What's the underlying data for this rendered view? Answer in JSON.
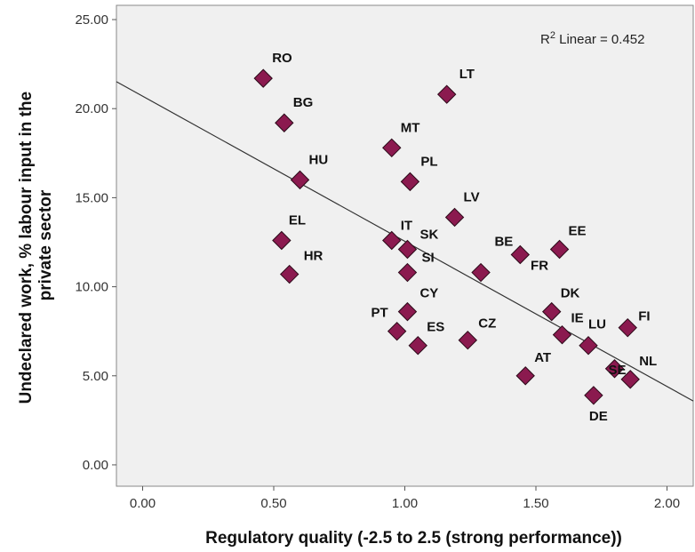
{
  "chart_data": {
    "type": "scatter",
    "xlabel": "Regulatory quality (-2.5 to 2.5 (strong performance))",
    "ylabel_line1": "Undeclared work, % labour input in the",
    "ylabel_line2": "private sector",
    "xlim": [
      -0.1,
      2.1
    ],
    "ylim": [
      -1.2,
      25.8
    ],
    "x_ticks": [
      0.0,
      0.5,
      1.0,
      1.5,
      2.0
    ],
    "x_tick_labels": [
      "0.00",
      "0.50",
      "1.00",
      "1.50",
      "2.00"
    ],
    "y_ticks": [
      0.0,
      5.0,
      10.0,
      15.0,
      20.0,
      25.0
    ],
    "y_tick_labels": [
      "0.00",
      "5.00",
      "10.00",
      "15.00",
      "20.00",
      "25.00"
    ],
    "grid": false,
    "fit_line": {
      "intercept": 20.7,
      "slope": -8.15
    },
    "r2_annotation": {
      "prefix": "R",
      "sup": "2",
      "text": " Linear = 0.452",
      "position": "top-right"
    },
    "points": [
      {
        "label": "RO",
        "x": 0.46,
        "y": 21.7
      },
      {
        "label": "BG",
        "x": 0.54,
        "y": 19.2
      },
      {
        "label": "HU",
        "x": 0.6,
        "y": 16.0
      },
      {
        "label": "EL",
        "x": 0.53,
        "y": 12.6
      },
      {
        "label": "HR",
        "x": 0.56,
        "y": 10.7
      },
      {
        "label": "MT",
        "x": 0.95,
        "y": 17.8
      },
      {
        "label": "PL",
        "x": 1.02,
        "y": 15.9
      },
      {
        "label": "LT",
        "x": 1.16,
        "y": 20.8
      },
      {
        "label": "LV",
        "x": 1.19,
        "y": 13.9
      },
      {
        "label": "IT",
        "x": 0.95,
        "y": 12.6
      },
      {
        "label": "SK",
        "x": 1.01,
        "y": 12.1
      },
      {
        "label": "SI",
        "x": 1.01,
        "y": 10.8
      },
      {
        "label": "CY",
        "x": 1.01,
        "y": 8.6
      },
      {
        "label": "PT",
        "x": 0.97,
        "y": 7.5
      },
      {
        "label": "ES",
        "x": 1.05,
        "y": 6.7
      },
      {
        "label": "CZ",
        "x": 1.24,
        "y": 7.0
      },
      {
        "label": "BE",
        "x": 1.44,
        "y": 11.8
      },
      {
        "label": "FR",
        "x": 1.29,
        "y": 10.8
      },
      {
        "label": "EE",
        "x": 1.59,
        "y": 12.1
      },
      {
        "label": "DK",
        "x": 1.56,
        "y": 8.6
      },
      {
        "label": "IE",
        "x": 1.6,
        "y": 7.3
      },
      {
        "label": "AT",
        "x": 1.46,
        "y": 5.0
      },
      {
        "label": "LU",
        "x": 1.7,
        "y": 6.7
      },
      {
        "label": "FI",
        "x": 1.85,
        "y": 7.7
      },
      {
        "label": "SE",
        "x": 1.8,
        "y": 5.4
      },
      {
        "label": "NL",
        "x": 1.86,
        "y": 4.8
      },
      {
        "label": "DE",
        "x": 1.72,
        "y": 3.9
      }
    ],
    "colors": {
      "marker": "#8b1a4f",
      "marker_edge": "#2a0a18",
      "line": "#333333",
      "plot_bg": "#f0f0f0",
      "frame": "#888888"
    }
  }
}
